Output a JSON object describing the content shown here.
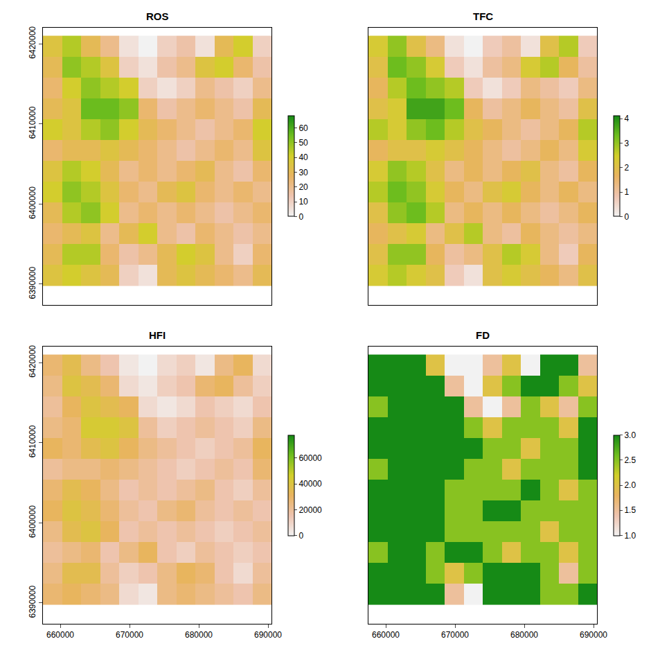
{
  "chart_data": [
    {
      "type": "heatmap",
      "title": "ROS",
      "tick_labels": "y",
      "x": [
        658875,
        661625,
        664375,
        667125,
        669875,
        672625,
        675375,
        678125,
        680875,
        683625,
        686375,
        689125
      ],
      "y": [
        6391100,
        6393700,
        6396300,
        6398900,
        6401500,
        6404100,
        6406700,
        6409300,
        6411900,
        6414500,
        6417100,
        6419700
      ],
      "z": [
        [
          35,
          40,
          35,
          30,
          10,
          5,
          30,
          35,
          30,
          25,
          20,
          30
        ],
        [
          30,
          45,
          45,
          25,
          15,
          20,
          30,
          40,
          35,
          20,
          10,
          25
        ],
        [
          25,
          30,
          35,
          20,
          30,
          40,
          20,
          15,
          25,
          20,
          15,
          20
        ],
        [
          30,
          45,
          50,
          40,
          20,
          25,
          20,
          25,
          20,
          15,
          20,
          25
        ],
        [
          40,
          50,
          45,
          35,
          25,
          20,
          30,
          35,
          25,
          20,
          25,
          20
        ],
        [
          35,
          45,
          40,
          30,
          20,
          25,
          20,
          25,
          30,
          20,
          15,
          25
        ],
        [
          25,
          30,
          30,
          35,
          30,
          25,
          20,
          15,
          20,
          25,
          20,
          35
        ],
        [
          40,
          35,
          45,
          50,
          40,
          30,
          25,
          20,
          15,
          20,
          25,
          40
        ],
        [
          30,
          35,
          55,
          55,
          50,
          25,
          15,
          20,
          25,
          20,
          15,
          30
        ],
        [
          25,
          40,
          50,
          45,
          40,
          10,
          5,
          10,
          20,
          15,
          10,
          20
        ],
        [
          30,
          50,
          45,
          35,
          10,
          5,
          15,
          20,
          35,
          40,
          25,
          15
        ],
        [
          35,
          45,
          30,
          20,
          5,
          0,
          10,
          15,
          5,
          30,
          40,
          10
        ]
      ],
      "xlim": [
        657500,
        690500
      ],
      "ylim": [
        6387400,
        6422000
      ],
      "xticks": [
        660000,
        670000,
        680000,
        690000
      ],
      "yticks": [
        6390000,
        6400000,
        6410000,
        6420000
      ],
      "zlim": [
        0,
        68
      ],
      "zticks": [
        0,
        10,
        20,
        30,
        40,
        50,
        60
      ]
    },
    {
      "type": "heatmap",
      "title": "TFC",
      "tick_labels": false,
      "x": [
        658875,
        661625,
        664375,
        667125,
        669875,
        672625,
        675375,
        678125,
        680875,
        683625,
        686375,
        689125
      ],
      "y": [
        6391100,
        6393700,
        6396300,
        6398900,
        6401500,
        6404100,
        6406700,
        6409300,
        6411900,
        6414500,
        6417100,
        6419700
      ],
      "z": [
        [
          2.3,
          2.7,
          2.3,
          2.0,
          0.7,
          0.3,
          2.0,
          2.3,
          2.0,
          1.7,
          1.3,
          2.0
        ],
        [
          2.0,
          3.0,
          3.0,
          1.7,
          1.0,
          1.3,
          2.0,
          2.7,
          2.3,
          1.3,
          0.7,
          1.7
        ],
        [
          1.7,
          2.0,
          2.3,
          1.3,
          2.0,
          2.7,
          1.3,
          1.0,
          1.7,
          1.3,
          1.0,
          1.3
        ],
        [
          2.0,
          3.0,
          3.3,
          2.7,
          1.3,
          1.7,
          1.3,
          1.7,
          1.3,
          1.0,
          1.3,
          1.7
        ],
        [
          2.7,
          3.3,
          3.0,
          2.3,
          1.7,
          1.3,
          2.0,
          2.3,
          1.7,
          1.3,
          1.7,
          1.3
        ],
        [
          2.3,
          3.0,
          2.7,
          2.0,
          1.3,
          1.7,
          1.3,
          1.7,
          2.0,
          1.3,
          1.0,
          1.7
        ],
        [
          1.7,
          2.0,
          2.0,
          2.3,
          2.0,
          1.7,
          1.3,
          1.0,
          1.3,
          1.7,
          1.3,
          2.3
        ],
        [
          2.7,
          2.3,
          3.0,
          3.3,
          2.7,
          2.0,
          1.7,
          1.3,
          1.0,
          1.3,
          1.7,
          2.7
        ],
        [
          2.0,
          2.3,
          3.7,
          3.7,
          3.3,
          1.7,
          1.0,
          1.3,
          1.7,
          1.3,
          1.0,
          2.0
        ],
        [
          1.7,
          2.7,
          3.3,
          3.0,
          2.7,
          0.7,
          0.3,
          0.7,
          1.3,
          1.0,
          0.7,
          1.3
        ],
        [
          2.0,
          3.3,
          3.0,
          2.3,
          0.7,
          0.3,
          1.0,
          1.3,
          2.3,
          2.7,
          1.7,
          1.0
        ],
        [
          2.3,
          3.0,
          2.0,
          1.3,
          0.3,
          0,
          0.7,
          1.0,
          0.3,
          2.0,
          2.7,
          0.7
        ]
      ],
      "xlim": [
        657500,
        690500
      ],
      "ylim": [
        6387400,
        6422000
      ],
      "xticks": [
        660000,
        670000,
        680000,
        690000
      ],
      "yticks": [
        6390000,
        6400000,
        6410000,
        6420000
      ],
      "zlim": [
        0,
        4.1
      ],
      "zticks": [
        0,
        1,
        2,
        3,
        4
      ]
    },
    {
      "type": "heatmap",
      "title": "HFI",
      "tick_labels": true,
      "x": [
        658875,
        661625,
        664375,
        667125,
        669875,
        672625,
        675375,
        678125,
        680875,
        683625,
        686375,
        689125
      ],
      "y": [
        6391100,
        6393700,
        6396300,
        6398900,
        6401500,
        6404100,
        6406700,
        6409300,
        6411900,
        6414500,
        6417100,
        6419700
      ],
      "z": [
        [
          28000,
          32000,
          28000,
          24000,
          8000,
          4000,
          24000,
          28000,
          24000,
          20000,
          16000,
          24000
        ],
        [
          24000,
          36000,
          36000,
          20000,
          12000,
          16000,
          24000,
          32000,
          28000,
          16000,
          8000,
          20000
        ],
        [
          20000,
          24000,
          28000,
          16000,
          24000,
          32000,
          16000,
          12000,
          20000,
          16000,
          12000,
          16000
        ],
        [
          24000,
          36000,
          40000,
          32000,
          16000,
          20000,
          16000,
          20000,
          16000,
          12000,
          16000,
          20000
        ],
        [
          32000,
          40000,
          36000,
          28000,
          20000,
          16000,
          24000,
          28000,
          20000,
          16000,
          20000,
          16000
        ],
        [
          28000,
          36000,
          32000,
          24000,
          16000,
          20000,
          16000,
          20000,
          24000,
          16000,
          12000,
          20000
        ],
        [
          20000,
          24000,
          24000,
          28000,
          24000,
          20000,
          16000,
          12000,
          16000,
          20000,
          16000,
          28000
        ],
        [
          32000,
          28000,
          36000,
          40000,
          32000,
          24000,
          20000,
          16000,
          12000,
          16000,
          20000,
          32000
        ],
        [
          24000,
          28000,
          44000,
          44000,
          40000,
          20000,
          12000,
          16000,
          20000,
          16000,
          12000,
          24000
        ],
        [
          20000,
          32000,
          40000,
          36000,
          32000,
          8000,
          4000,
          8000,
          16000,
          12000,
          8000,
          16000
        ],
        [
          24000,
          40000,
          36000,
          28000,
          8000,
          4000,
          12000,
          16000,
          28000,
          32000,
          20000,
          12000
        ],
        [
          28000,
          36000,
          24000,
          16000,
          4000,
          0,
          8000,
          12000,
          4000,
          24000,
          32000,
          8000
        ]
      ],
      "xlim": [
        657500,
        690500
      ],
      "ylim": [
        6387400,
        6422000
      ],
      "xticks": [
        660000,
        670000,
        680000,
        690000
      ],
      "yticks": [
        6390000,
        6400000,
        6410000,
        6420000
      ],
      "zlim": [
        0,
        78000
      ],
      "zticks": [
        0,
        20000,
        40000,
        60000
      ]
    },
    {
      "type": "heatmap",
      "title": "FD",
      "tick_labels": "x",
      "x": [
        658875,
        661625,
        664375,
        667125,
        669875,
        672625,
        675375,
        678125,
        680875,
        683625,
        686375,
        689125
      ],
      "y": [
        6391100,
        6393700,
        6396300,
        6398900,
        6401500,
        6404100,
        6406700,
        6409300,
        6411900,
        6414500,
        6417100,
        6419700
      ],
      "z": [
        [
          3,
          3,
          3,
          3,
          1.5,
          1,
          3,
          3,
          3,
          2.5,
          2.5,
          3
        ],
        [
          3,
          3,
          3,
          2.5,
          2,
          2.5,
          3,
          3,
          3,
          2.5,
          1.5,
          2.5
        ],
        [
          2.5,
          3,
          3,
          2.5,
          3,
          3,
          2.5,
          2,
          2.5,
          2.5,
          2,
          2.5
        ],
        [
          3,
          3,
          3,
          3,
          2.5,
          2.5,
          2.5,
          2.5,
          2.5,
          2,
          2.5,
          2.5
        ],
        [
          3,
          3,
          3,
          3,
          2.5,
          2.5,
          3,
          3,
          2.5,
          2.5,
          2.5,
          2.5
        ],
        [
          3,
          3,
          3,
          3,
          2.5,
          2.5,
          2.5,
          2.5,
          3,
          2.5,
          2,
          2.5
        ],
        [
          2.5,
          3,
          3,
          3,
          3,
          2.5,
          2.5,
          2,
          2.5,
          2.5,
          2.5,
          3
        ],
        [
          3,
          3,
          3,
          3,
          3,
          3,
          2.5,
          2.5,
          2,
          2.5,
          2.5,
          3
        ],
        [
          3,
          3,
          3,
          3,
          3,
          2.5,
          2,
          2.5,
          2.5,
          2.5,
          2,
          3
        ],
        [
          2.5,
          3,
          3,
          3,
          3,
          1.5,
          1,
          1.5,
          2.5,
          2,
          1.5,
          2.5
        ],
        [
          3,
          3,
          3,
          3,
          1.5,
          1,
          2,
          2.5,
          3,
          3,
          2.5,
          2
        ],
        [
          3,
          3,
          3,
          2,
          1,
          1,
          1.5,
          2,
          1,
          3,
          3,
          1.5
        ]
      ],
      "xlim": [
        657500,
        690500
      ],
      "ylim": [
        6387400,
        6422000
      ],
      "xticks": [
        660000,
        670000,
        680000,
        690000
      ],
      "yticks": [
        6390000,
        6400000,
        6410000,
        6420000
      ],
      "zlim": [
        1,
        3
      ],
      "zticks": [
        {
          "value": 1,
          "label": "1.0"
        },
        1.5,
        {
          "value": 2,
          "label": "2.0"
        },
        2.5,
        {
          "value": 3,
          "label": "3.0"
        }
      ]
    }
  ]
}
